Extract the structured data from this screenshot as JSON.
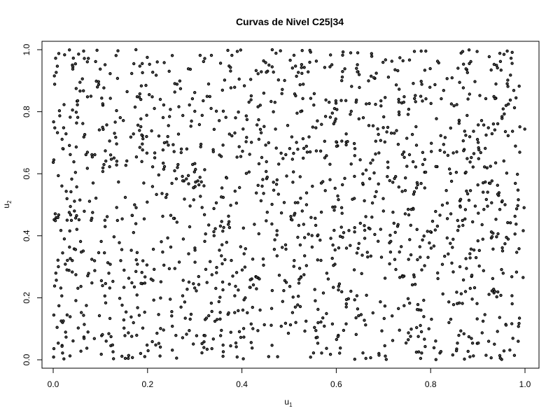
{
  "chart_data": {
    "type": "scatter",
    "title": "Curvas de Nivel C25|34",
    "xlabel": "u",
    "xlabel_sub": "1",
    "ylabel": "u",
    "ylabel_sub": "2",
    "xlim": [
      0,
      1
    ],
    "ylim": [
      0,
      1
    ],
    "x_ticks": [
      0.0,
      0.2,
      0.4,
      0.6,
      0.8,
      1.0
    ],
    "y_ticks": [
      0.0,
      0.2,
      0.4,
      0.6,
      0.8,
      1.0
    ],
    "x_tick_labels": [
      "0.0",
      "0.2",
      "0.4",
      "0.6",
      "0.8",
      "1.0"
    ],
    "y_tick_labels": [
      "0.0",
      "0.2",
      "0.4",
      "0.6",
      "0.8",
      "1.0"
    ],
    "grid": false,
    "legend": "none",
    "marker": "open-circle",
    "colors": {
      "marker_fill": "#555555",
      "marker_stroke": "#000000",
      "axis": "#000000"
    },
    "point_count": 1500
  }
}
